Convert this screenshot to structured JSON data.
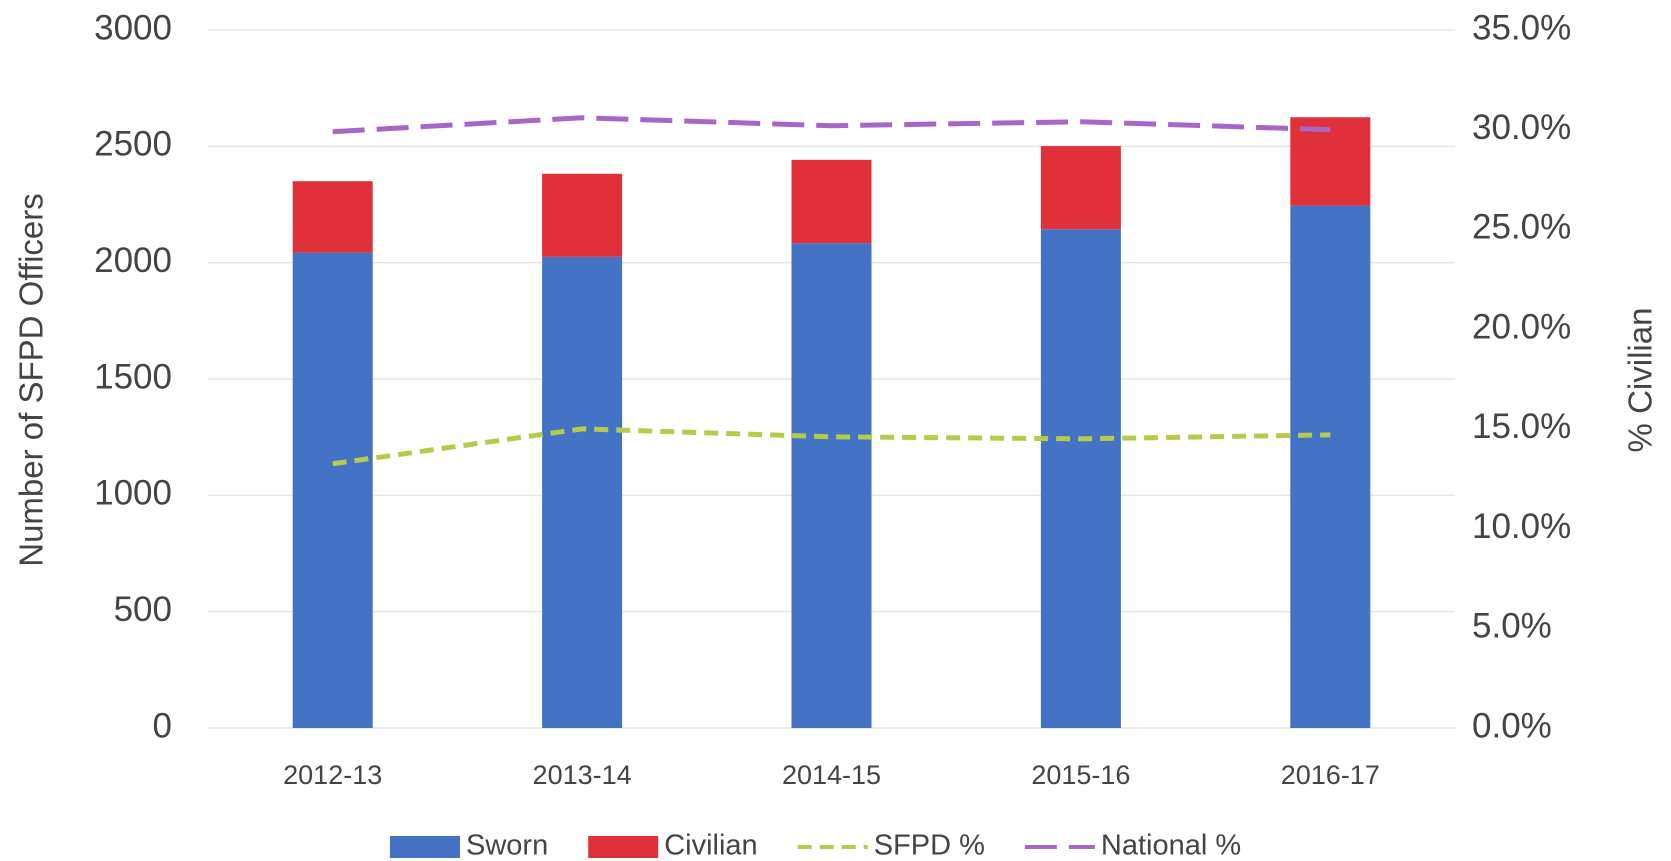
{
  "chart_data": {
    "type": "bar",
    "categories": [
      "2012-13",
      "2013-14",
      "2014-15",
      "2015-16",
      "2016-17"
    ],
    "series": [
      {
        "name": "Sworn",
        "type": "bar",
        "color": "#4472c4",
        "values": [
          2043,
          2025,
          2084,
          2144,
          2245
        ]
      },
      {
        "name": "Civilian",
        "type": "bar",
        "color": "#e0303a",
        "values": [
          307,
          357,
          358,
          357,
          380
        ]
      },
      {
        "name": "SFPD %",
        "type": "line",
        "axis": "y2",
        "color": "#b5cc4a",
        "dash": "short",
        "values": [
          13.25,
          15.0,
          14.6,
          14.5,
          14.7
        ]
      },
      {
        "name": "National %",
        "type": "line",
        "axis": "y2",
        "color": "#a866c8",
        "dash": "long",
        "values": [
          29.9,
          30.6,
          30.2,
          30.4,
          30.0
        ]
      }
    ],
    "ylabel": "Number of SFPD Officers",
    "y2label": "% Civilian",
    "ylim": [
      0,
      3000
    ],
    "yticks": [
      0,
      500,
      1000,
      1500,
      2000,
      2500,
      3000
    ],
    "y2lim": [
      0,
      35
    ],
    "y2ticks": [
      {
        "value": 0,
        "label": "0.0%"
      },
      {
        "value": 5,
        "label": "5.0%"
      },
      {
        "value": 10,
        "label": "10.0%"
      },
      {
        "value": 15,
        "label": "15.0%"
      },
      {
        "value": 20,
        "label": "20.0%"
      },
      {
        "value": 25,
        "label": "25.0%"
      },
      {
        "value": 30,
        "label": "30.0%"
      },
      {
        "value": 35,
        "label": "35.0%"
      }
    ],
    "grid": true,
    "stacked": true,
    "legend": "bottom"
  }
}
